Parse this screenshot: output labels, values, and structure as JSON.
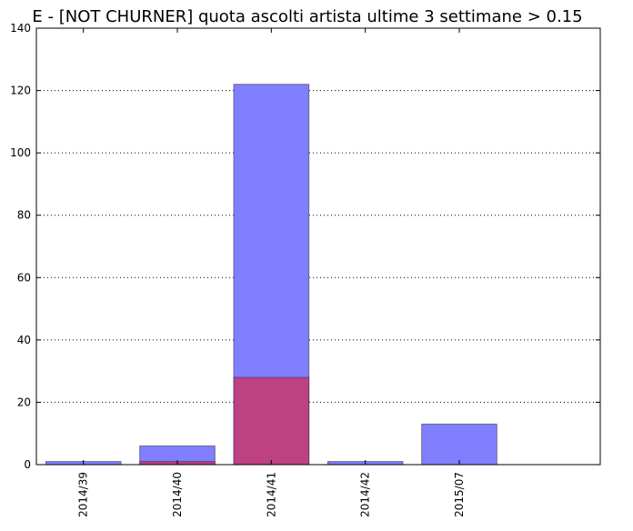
{
  "chart_data": {
    "type": "bar",
    "title": "E - [NOT CHURNER] quota ascolti artista ultime 3 settimane > 0.15",
    "xlabel": "",
    "ylabel": "",
    "categories": [
      "2014/39",
      "2014/40",
      "2014/41",
      "2014/42",
      "2015/07"
    ],
    "series": [
      {
        "values": [
          1,
          6,
          122,
          1,
          13
        ],
        "color": "#8080ff"
      },
      {
        "values": [
          0,
          1,
          28,
          0,
          0
        ],
        "color": "#c03d7c"
      }
    ],
    "ylim": [
      0,
      140
    ],
    "yticks": [
      0,
      20,
      40,
      60,
      80,
      100,
      120,
      140
    ],
    "grid": "horizontal dotted",
    "overlay": true
  }
}
